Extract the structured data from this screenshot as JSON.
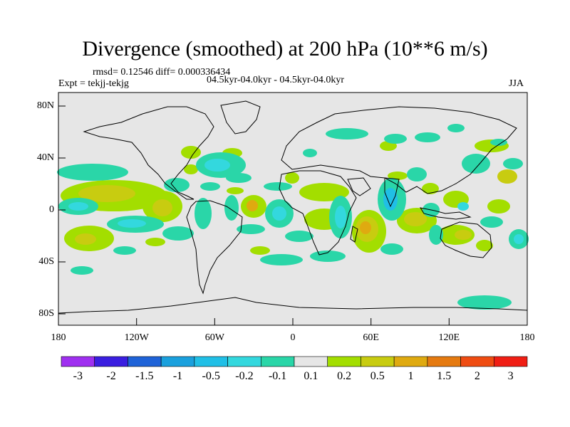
{
  "title": "Divergence (smoothed) at 200 hPa (10**6 m/s)",
  "stats": "rmsd= 0.12546 diff= 0.000336434",
  "experiment": "Expt = tekjj-tekjg",
  "period": "04.5kyr-04.0kyr - 04.5kyr-04.0kyr",
  "season": "JJA",
  "lat_labels": [
    "80N",
    "40N",
    "0",
    "40S",
    "80S"
  ],
  "lon_labels": [
    "180",
    "120W",
    "60W",
    "0",
    "60E",
    "120E",
    "180"
  ],
  "colorbar": {
    "labels": [
      "-3",
      "-2",
      "-1.5",
      "-1",
      "-0.5",
      "-0.2",
      "-0.1",
      "0.1",
      "0.2",
      "0.5",
      "1",
      "1.5",
      "2",
      "3"
    ],
    "colors": [
      "#9f2ff0",
      "#3a1ee0",
      "#1f63d8",
      "#1aa0dd",
      "#20bfe6",
      "#33d8de",
      "#2ad6a8",
      "#e6e6e6",
      "#a3de00",
      "#c8cc10",
      "#dfaa10",
      "#e57a10",
      "#ef4c12",
      "#f01e14"
    ]
  },
  "map_colors": {
    "background": "#e6e6e6",
    "neg_weak": "#2ad6a8",
    "neg_mid": "#33d8de",
    "neg_strong": "#20bfe6",
    "pos_weak": "#a3de00",
    "pos_mid": "#c8cc10",
    "pos_strong": "#dfaa10"
  }
}
